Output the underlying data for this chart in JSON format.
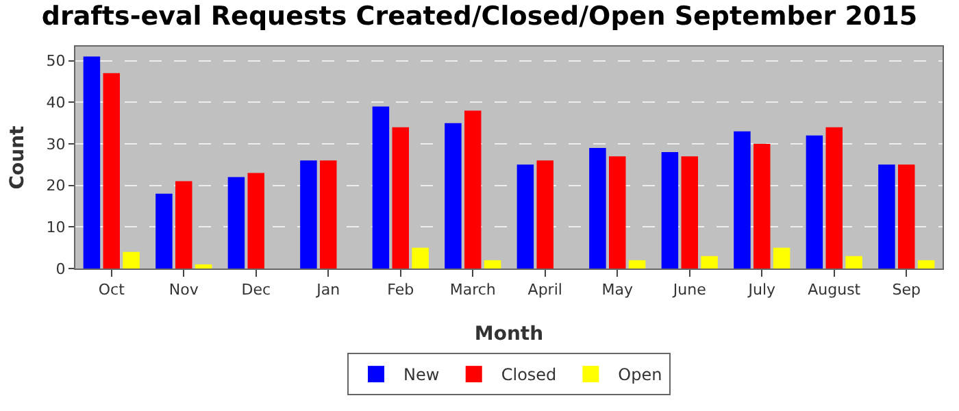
{
  "chart_data": {
    "type": "bar",
    "title": "drafts-eval Requests Created/Closed/Open September 2015",
    "xlabel": "Month",
    "ylabel": "Count",
    "categories": [
      "Oct",
      "Nov",
      "Dec",
      "Jan",
      "Feb",
      "March",
      "April",
      "May",
      "June",
      "July",
      "August",
      "Sep"
    ],
    "series": [
      {
        "name": "New",
        "color": "#0000ff",
        "values": [
          51,
          18,
          22,
          26,
          39,
          35,
          25,
          29,
          28,
          33,
          32,
          25
        ]
      },
      {
        "name": "Closed",
        "color": "#ff0000",
        "values": [
          47,
          21,
          23,
          26,
          34,
          38,
          26,
          27,
          27,
          30,
          34,
          25
        ]
      },
      {
        "name": "Open",
        "color": "#ffff00",
        "values": [
          4,
          1,
          0,
          0,
          5,
          2,
          0,
          2,
          3,
          5,
          3,
          2
        ]
      }
    ],
    "ylim": [
      0,
      53.4
    ],
    "yticks": [
      0,
      10,
      20,
      30,
      40,
      50
    ],
    "grid": "y",
    "legend": "bottom"
  }
}
